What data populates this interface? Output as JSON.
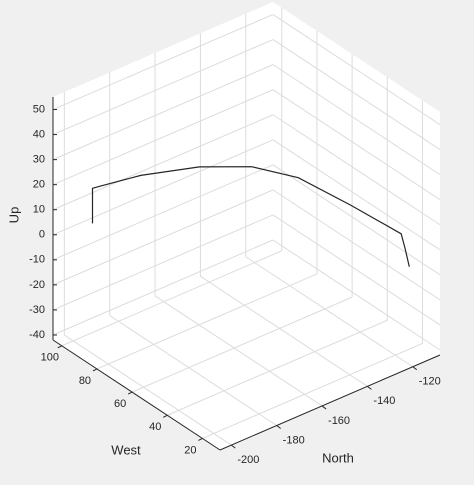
{
  "chart_data": {
    "type": "line3d",
    "xlabel": "North",
    "ylabel": "West",
    "zlabel": "Up",
    "x": [
      -200,
      -200,
      -198,
      -188,
      -173,
      -160,
      -148,
      -135,
      -122,
      -121,
      -120
    ],
    "y": [
      89,
      89,
      87,
      77,
      63,
      50,
      39,
      26,
      14,
      13,
      12
    ],
    "z": [
      10,
      24,
      25,
      30,
      34,
      35,
      31,
      21,
      10,
      4,
      -3
    ],
    "color": "#262626",
    "xlim": [
      -205,
      -108
    ],
    "ylim": [
      10,
      105
    ],
    "zlim": [
      -42,
      55
    ],
    "xticks": [
      -200,
      -180,
      -160,
      -140,
      -120
    ],
    "yticks": [
      20,
      40,
      60,
      80,
      100
    ],
    "zticks": [
      -40,
      -30,
      -20,
      -10,
      0,
      10,
      20,
      30,
      40,
      50
    ],
    "grid": true
  }
}
